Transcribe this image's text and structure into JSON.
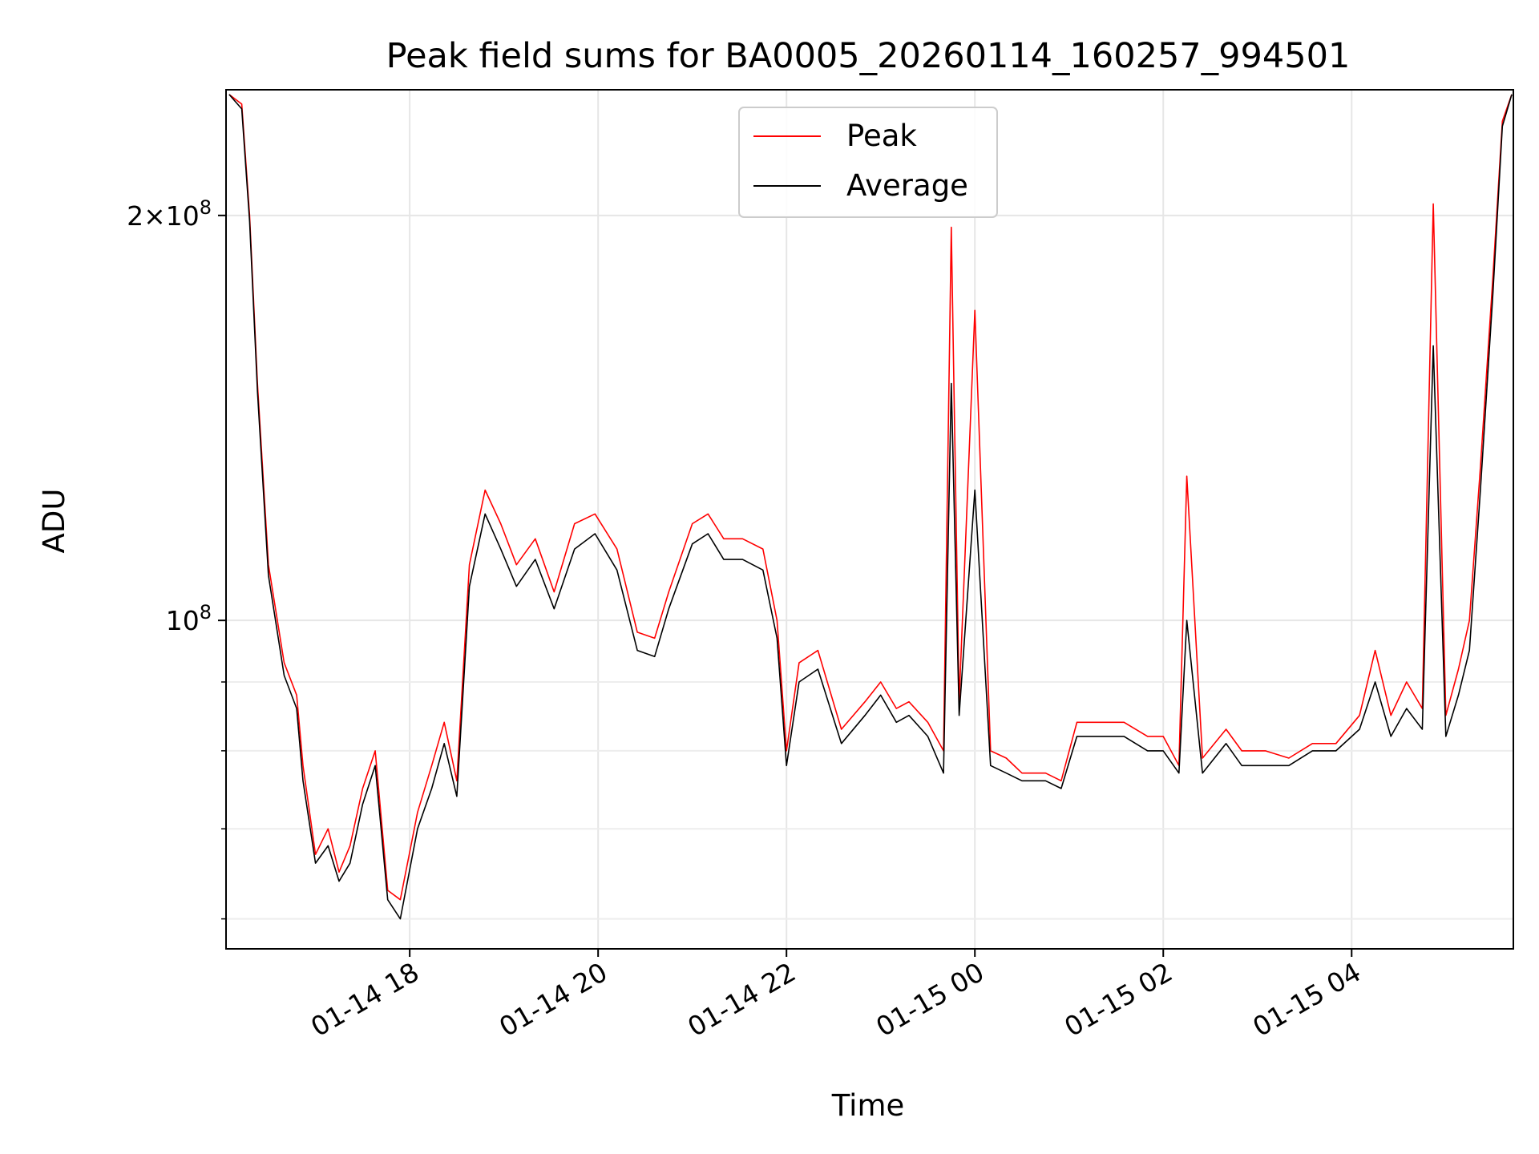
{
  "chart_data": {
    "type": "line",
    "title": "Peak field sums for BA0005_20260114_160257_994501",
    "xlabel": "Time",
    "ylabel": "ADU",
    "yscale": "log",
    "ylim": [
      57000000,
      248000000
    ],
    "xlim": [
      "2026-01-14 16:03",
      "2026-01-15 05:43"
    ],
    "x_ticks": [
      {
        "x": "2026-01-14 18:00",
        "label": "01-14 18"
      },
      {
        "x": "2026-01-14 20:00",
        "label": "01-14 20"
      },
      {
        "x": "2026-01-14 22:00",
        "label": "01-14 22"
      },
      {
        "x": "2026-01-15 00:00",
        "label": "01-15 00"
      },
      {
        "x": "2026-01-15 02:00",
        "label": "01-15 02"
      },
      {
        "x": "2026-01-15 04:00",
        "label": "01-15 04"
      }
    ],
    "y_ticks_major": [
      {
        "y": 100000000,
        "label": "10^8"
      },
      {
        "y": 200000000,
        "label": "2×10^8"
      }
    ],
    "y_ticks_minor": [
      60000000,
      70000000,
      80000000,
      90000000
    ],
    "grid": true,
    "legend_position": "top-center",
    "series": [
      {
        "name": "Peak",
        "color": "#ff0000",
        "x": [
          "2026-01-14 16:05",
          "2026-01-14 16:13",
          "2026-01-14 16:18",
          "2026-01-14 16:23",
          "2026-01-14 16:30",
          "2026-01-14 16:40",
          "2026-01-14 16:48",
          "2026-01-14 16:52",
          "2026-01-14 17:00",
          "2026-01-14 17:08",
          "2026-01-14 17:15",
          "2026-01-14 17:22",
          "2026-01-14 17:30",
          "2026-01-14 17:38",
          "2026-01-14 17:46",
          "2026-01-14 17:54",
          "2026-01-14 18:05",
          "2026-01-14 18:14",
          "2026-01-14 18:22",
          "2026-01-14 18:30",
          "2026-01-14 18:38",
          "2026-01-14 18:48",
          "2026-01-14 18:58",
          "2026-01-14 19:08",
          "2026-01-14 19:20",
          "2026-01-14 19:32",
          "2026-01-14 19:45",
          "2026-01-14 19:58",
          "2026-01-14 20:12",
          "2026-01-14 20:25",
          "2026-01-14 20:36",
          "2026-01-14 20:45",
          "2026-01-14 21:00",
          "2026-01-14 21:10",
          "2026-01-14 21:20",
          "2026-01-14 21:32",
          "2026-01-14 21:45",
          "2026-01-14 21:54",
          "2026-01-14 22:00",
          "2026-01-14 22:08",
          "2026-01-14 22:20",
          "2026-01-14 22:35",
          "2026-01-14 22:50",
          "2026-01-14 23:00",
          "2026-01-14 23:10",
          "2026-01-14 23:18",
          "2026-01-14 23:30",
          "2026-01-14 23:40",
          "2026-01-14 23:45",
          "2026-01-14 23:50",
          "2026-01-15 00:00",
          "2026-01-15 00:10",
          "2026-01-15 00:20",
          "2026-01-15 00:30",
          "2026-01-15 00:45",
          "2026-01-15 00:55",
          "2026-01-15 01:05",
          "2026-01-15 01:20",
          "2026-01-15 01:35",
          "2026-01-15 01:50",
          "2026-01-15 02:00",
          "2026-01-15 02:10",
          "2026-01-15 02:15",
          "2026-01-15 02:25",
          "2026-01-15 02:40",
          "2026-01-15 02:50",
          "2026-01-15 03:05",
          "2026-01-15 03:20",
          "2026-01-15 03:35",
          "2026-01-15 03:50",
          "2026-01-15 04:05",
          "2026-01-15 04:15",
          "2026-01-15 04:25",
          "2026-01-15 04:35",
          "2026-01-15 04:45",
          "2026-01-15 04:52",
          "2026-01-15 05:00",
          "2026-01-15 05:08",
          "2026-01-15 05:15",
          "2026-01-15 05:22",
          "2026-01-15 05:30",
          "2026-01-15 05:36",
          "2026-01-15 05:42"
        ],
        "y": [
          246000000,
          242000000,
          200000000,
          150000000,
          110000000,
          93000000,
          88000000,
          78000000,
          67000000,
          70000000,
          65000000,
          68000000,
          75000000,
          80000000,
          63000000,
          62000000,
          72000000,
          78000000,
          84000000,
          76000000,
          110000000,
          125000000,
          118000000,
          110000000,
          115000000,
          105000000,
          118000000,
          120000000,
          113000000,
          98000000,
          97000000,
          105000000,
          118000000,
          120000000,
          115000000,
          115000000,
          113000000,
          100000000,
          80000000,
          93000000,
          95000000,
          83000000,
          87000000,
          90000000,
          86000000,
          87000000,
          84000000,
          80000000,
          196000000,
          87000000,
          170000000,
          80000000,
          79000000,
          77000000,
          77000000,
          76000000,
          84000000,
          84000000,
          84000000,
          82000000,
          82000000,
          78000000,
          128000000,
          79000000,
          83000000,
          80000000,
          80000000,
          79000000,
          81000000,
          81000000,
          85000000,
          95000000,
          85000000,
          90000000,
          86000000,
          204000000,
          85000000,
          92000000,
          100000000,
          130000000,
          180000000,
          235000000,
          246000000
        ]
      },
      {
        "name": "Average",
        "color": "#000000",
        "x": [
          "2026-01-14 16:05",
          "2026-01-14 16:13",
          "2026-01-14 16:18",
          "2026-01-14 16:23",
          "2026-01-14 16:30",
          "2026-01-14 16:40",
          "2026-01-14 16:48",
          "2026-01-14 16:52",
          "2026-01-14 17:00",
          "2026-01-14 17:08",
          "2026-01-14 17:15",
          "2026-01-14 17:22",
          "2026-01-14 17:30",
          "2026-01-14 17:38",
          "2026-01-14 17:46",
          "2026-01-14 17:54",
          "2026-01-14 18:05",
          "2026-01-14 18:14",
          "2026-01-14 18:22",
          "2026-01-14 18:30",
          "2026-01-14 18:38",
          "2026-01-14 18:48",
          "2026-01-14 18:58",
          "2026-01-14 19:08",
          "2026-01-14 19:20",
          "2026-01-14 19:32",
          "2026-01-14 19:45",
          "2026-01-14 19:58",
          "2026-01-14 20:12",
          "2026-01-14 20:25",
          "2026-01-14 20:36",
          "2026-01-14 20:45",
          "2026-01-14 21:00",
          "2026-01-14 21:10",
          "2026-01-14 21:20",
          "2026-01-14 21:32",
          "2026-01-14 21:45",
          "2026-01-14 21:54",
          "2026-01-14 22:00",
          "2026-01-14 22:08",
          "2026-01-14 22:20",
          "2026-01-14 22:35",
          "2026-01-14 22:50",
          "2026-01-14 23:00",
          "2026-01-14 23:10",
          "2026-01-14 23:18",
          "2026-01-14 23:30",
          "2026-01-14 23:40",
          "2026-01-14 23:45",
          "2026-01-14 23:50",
          "2026-01-15 00:00",
          "2026-01-15 00:10",
          "2026-01-15 00:20",
          "2026-01-15 00:30",
          "2026-01-15 00:45",
          "2026-01-15 00:55",
          "2026-01-15 01:05",
          "2026-01-15 01:20",
          "2026-01-15 01:35",
          "2026-01-15 01:50",
          "2026-01-15 02:00",
          "2026-01-15 02:10",
          "2026-01-15 02:15",
          "2026-01-15 02:25",
          "2026-01-15 02:40",
          "2026-01-15 02:50",
          "2026-01-15 03:05",
          "2026-01-15 03:20",
          "2026-01-15 03:35",
          "2026-01-15 03:50",
          "2026-01-15 04:05",
          "2026-01-15 04:15",
          "2026-01-15 04:25",
          "2026-01-15 04:35",
          "2026-01-15 04:45",
          "2026-01-15 04:52",
          "2026-01-15 05:00",
          "2026-01-15 05:08",
          "2026-01-15 05:15",
          "2026-01-15 05:22",
          "2026-01-15 05:30",
          "2026-01-15 05:36",
          "2026-01-15 05:42"
        ],
        "y": [
          246000000,
          240000000,
          198000000,
          148000000,
          108000000,
          91000000,
          86000000,
          76000000,
          66000000,
          68000000,
          64000000,
          66000000,
          73000000,
          78000000,
          62000000,
          60000000,
          70000000,
          75000000,
          81000000,
          74000000,
          106000000,
          120000000,
          113000000,
          106000000,
          111000000,
          102000000,
          113000000,
          116000000,
          109000000,
          95000000,
          94000000,
          102000000,
          114000000,
          116000000,
          111000000,
          111000000,
          109000000,
          97000000,
          78000000,
          90000000,
          92000000,
          81000000,
          85000000,
          88000000,
          84000000,
          85000000,
          82000000,
          77000000,
          150000000,
          85000000,
          125000000,
          78000000,
          77000000,
          76000000,
          76000000,
          75000000,
          82000000,
          82000000,
          82000000,
          80000000,
          80000000,
          77000000,
          100000000,
          77000000,
          81000000,
          78000000,
          78000000,
          78000000,
          80000000,
          80000000,
          83000000,
          90000000,
          82000000,
          86000000,
          83000000,
          160000000,
          82000000,
          88000000,
          95000000,
          125000000,
          175000000,
          233000000,
          246000000
        ]
      }
    ]
  }
}
